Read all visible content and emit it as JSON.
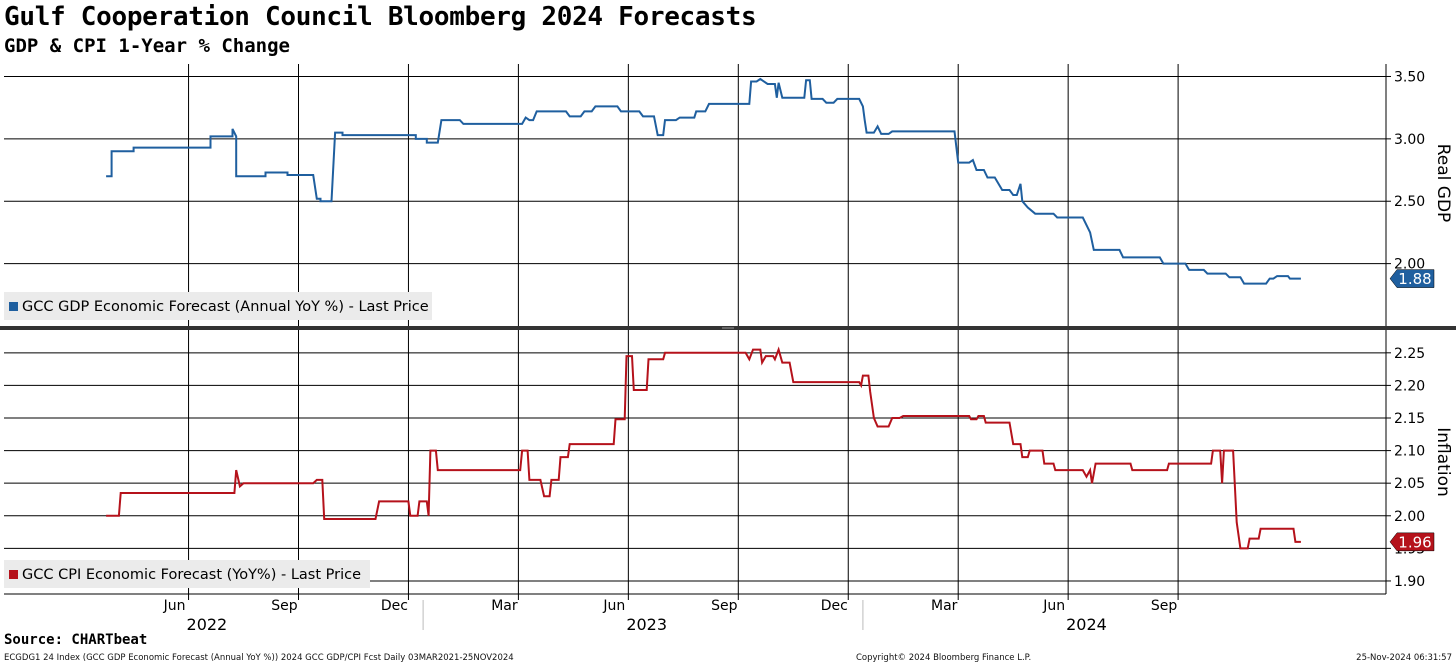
{
  "title": "Gulf Cooperation Council Bloomberg 2024 Forecasts",
  "subtitle": "GDP & CPI 1-Year % Change",
  "source": "Source: CHARTbeat",
  "footer": {
    "left": "ECGDG1 24 Index (GCC GDP Economic Forecast (Annual YoY %)) 2024 GCC GDP/CPI Fcst  Daily 03MAR2021-25NOV2024",
    "middle": "Copyright© 2024 Bloomberg Finance L.P.",
    "right": "25-Nov-2024 06:31:57"
  },
  "colors": {
    "gdp": "#1f5f9f",
    "cpi": "#b5121b"
  },
  "chart_data": [
    {
      "type": "line",
      "panel": "top",
      "ylabel": "Real GDP",
      "ylim": [
        1.5,
        3.6
      ],
      "yticks": [
        "3.50",
        "3.00",
        "2.50",
        "2.00"
      ],
      "legend": "GCC GDP Economic Forecast (Annual YoY %) - Last Price",
      "last_value": "1.88",
      "x_month_index_range": [
        2.75,
        35.35
      ],
      "series": [
        {
          "name": "GCC GDP Economic Forecast (Annual YoY %) - Last Price",
          "points": [
            [
              2.75,
              2.7
            ],
            [
              2.9,
              2.7
            ],
            [
              2.9,
              2.9
            ],
            [
              3.5,
              2.9
            ],
            [
              3.5,
              2.93
            ],
            [
              5.6,
              2.93
            ],
            [
              5.6,
              3.02
            ],
            [
              6.2,
              3.02
            ],
            [
              6.2,
              3.08
            ],
            [
              6.3,
              3.02
            ],
            [
              6.3,
              2.7
            ],
            [
              7.1,
              2.7
            ],
            [
              7.1,
              2.73
            ],
            [
              7.7,
              2.73
            ],
            [
              7.7,
              2.71
            ],
            [
              8.4,
              2.71
            ],
            [
              8.5,
              2.52
            ],
            [
              8.6,
              2.52
            ],
            [
              8.6,
              2.5
            ],
            [
              8.9,
              2.5
            ],
            [
              9.0,
              3.05
            ],
            [
              9.2,
              3.05
            ],
            [
              9.2,
              3.03
            ],
            [
              11.2,
              3.03
            ],
            [
              11.2,
              3.0
            ],
            [
              11.5,
              3.0
            ],
            [
              11.5,
              2.97
            ],
            [
              11.8,
              2.97
            ],
            [
              11.9,
              3.15
            ],
            [
              12.4,
              3.15
            ],
            [
              12.5,
              3.12
            ],
            [
              14.1,
              3.12
            ],
            [
              14.2,
              3.17
            ],
            [
              14.3,
              3.15
            ],
            [
              14.4,
              3.15
            ],
            [
              14.5,
              3.22
            ],
            [
              15.3,
              3.22
            ],
            [
              15.4,
              3.18
            ],
            [
              15.7,
              3.18
            ],
            [
              15.8,
              3.22
            ],
            [
              16.0,
              3.22
            ],
            [
              16.1,
              3.26
            ],
            [
              16.7,
              3.26
            ],
            [
              16.8,
              3.22
            ],
            [
              17.3,
              3.22
            ],
            [
              17.4,
              3.18
            ],
            [
              17.7,
              3.18
            ],
            [
              17.8,
              3.03
            ],
            [
              17.95,
              3.03
            ],
            [
              18.0,
              3.15
            ],
            [
              18.3,
              3.15
            ],
            [
              18.4,
              3.17
            ],
            [
              18.8,
              3.17
            ],
            [
              18.85,
              3.22
            ],
            [
              19.1,
              3.22
            ],
            [
              19.2,
              3.28
            ],
            [
              20.3,
              3.28
            ],
            [
              20.35,
              3.46
            ],
            [
              20.5,
              3.46
            ],
            [
              20.6,
              3.48
            ],
            [
              20.8,
              3.44
            ],
            [
              21.0,
              3.44
            ],
            [
              21.05,
              3.33
            ],
            [
              21.1,
              3.45
            ],
            [
              21.2,
              3.33
            ],
            [
              21.8,
              3.33
            ],
            [
              21.85,
              3.47
            ],
            [
              21.95,
              3.47
            ],
            [
              22.0,
              3.32
            ],
            [
              22.3,
              3.32
            ],
            [
              22.4,
              3.29
            ],
            [
              22.6,
              3.29
            ],
            [
              22.7,
              3.32
            ],
            [
              23.3,
              3.32
            ],
            [
              23.4,
              3.26
            ],
            [
              23.45,
              3.15
            ],
            [
              23.5,
              3.05
            ],
            [
              23.7,
              3.05
            ],
            [
              23.8,
              3.1
            ],
            [
              23.9,
              3.04
            ],
            [
              24.1,
              3.04
            ],
            [
              24.2,
              3.06
            ],
            [
              25.9,
              3.06
            ],
            [
              26.0,
              2.81
            ],
            [
              26.3,
              2.81
            ],
            [
              26.4,
              2.83
            ],
            [
              26.5,
              2.75
            ],
            [
              26.7,
              2.75
            ],
            [
              26.8,
              2.69
            ],
            [
              27.0,
              2.69
            ],
            [
              27.1,
              2.64
            ],
            [
              27.2,
              2.59
            ],
            [
              27.4,
              2.59
            ],
            [
              27.5,
              2.55
            ],
            [
              27.6,
              2.55
            ],
            [
              27.7,
              2.64
            ],
            [
              27.75,
              2.5
            ],
            [
              27.9,
              2.45
            ],
            [
              28.1,
              2.4
            ],
            [
              28.6,
              2.4
            ],
            [
              28.7,
              2.37
            ],
            [
              29.4,
              2.37
            ],
            [
              29.6,
              2.25
            ],
            [
              29.7,
              2.11
            ],
            [
              30.4,
              2.11
            ],
            [
              30.5,
              2.05
            ],
            [
              31.5,
              2.05
            ],
            [
              31.6,
              2.0
            ],
            [
              32.2,
              2.0
            ],
            [
              32.3,
              1.95
            ],
            [
              32.7,
              1.95
            ],
            [
              32.8,
              1.92
            ],
            [
              33.3,
              1.92
            ],
            [
              33.4,
              1.89
            ],
            [
              33.7,
              1.89
            ],
            [
              33.8,
              1.84
            ],
            [
              34.4,
              1.84
            ],
            [
              34.5,
              1.88
            ],
            [
              34.6,
              1.88
            ],
            [
              34.7,
              1.9
            ],
            [
              35.0,
              1.9
            ],
            [
              35.05,
              1.88
            ],
            [
              35.35,
              1.88
            ]
          ]
        }
      ]
    },
    {
      "type": "line",
      "panel": "bottom",
      "ylabel": "Inflation",
      "ylim": [
        1.88,
        2.285
      ],
      "yticks": [
        "2.25",
        "2.20",
        "2.15",
        "2.10",
        "2.05",
        "2.00",
        "1.95",
        "1.90"
      ],
      "legend": "GCC CPI Economic Forecast (YoY%) - Last Price",
      "last_value": "1.96",
      "x_month_index_range": [
        2.75,
        35.35
      ],
      "series": [
        {
          "name": "GCC CPI Economic Forecast (YoY%) - Last Price",
          "points": [
            [
              2.75,
              2.0
            ],
            [
              3.1,
              2.0
            ],
            [
              3.15,
              2.035
            ],
            [
              6.25,
              2.035
            ],
            [
              6.3,
              2.07
            ],
            [
              6.4,
              2.045
            ],
            [
              6.5,
              2.05
            ],
            [
              8.4,
              2.05
            ],
            [
              8.5,
              2.055
            ],
            [
              8.65,
              2.055
            ],
            [
              8.7,
              1.995
            ],
            [
              10.1,
              1.995
            ],
            [
              10.2,
              2.022
            ],
            [
              11.0,
              2.022
            ],
            [
              11.05,
              2.0
            ],
            [
              11.25,
              2.0
            ],
            [
              11.3,
              2.022
            ],
            [
              11.5,
              2.022
            ],
            [
              11.55,
              2.0
            ],
            [
              11.6,
              2.1
            ],
            [
              11.75,
              2.1
            ],
            [
              11.8,
              2.07
            ],
            [
              14.05,
              2.07
            ],
            [
              14.1,
              2.1
            ],
            [
              14.25,
              2.1
            ],
            [
              14.3,
              2.055
            ],
            [
              14.6,
              2.055
            ],
            [
              14.7,
              2.03
            ],
            [
              14.85,
              2.03
            ],
            [
              14.9,
              2.055
            ],
            [
              15.1,
              2.055
            ],
            [
              15.15,
              2.09
            ],
            [
              15.35,
              2.09
            ],
            [
              15.4,
              2.11
            ],
            [
              16.6,
              2.11
            ],
            [
              16.65,
              2.148
            ],
            [
              16.9,
              2.148
            ],
            [
              16.95,
              2.245
            ],
            [
              17.1,
              2.245
            ],
            [
              17.15,
              2.193
            ],
            [
              17.5,
              2.193
            ],
            [
              17.55,
              2.24
            ],
            [
              17.95,
              2.24
            ],
            [
              18.0,
              2.25
            ],
            [
              20.2,
              2.25
            ],
            [
              20.3,
              2.24
            ],
            [
              20.4,
              2.255
            ],
            [
              20.6,
              2.255
            ],
            [
              20.65,
              2.235
            ],
            [
              20.75,
              2.245
            ],
            [
              20.95,
              2.245
            ],
            [
              21.0,
              2.24
            ],
            [
              21.1,
              2.255
            ],
            [
              21.2,
              2.235
            ],
            [
              21.4,
              2.235
            ],
            [
              21.5,
              2.205
            ],
            [
              23.3,
              2.205
            ],
            [
              23.35,
              2.2
            ],
            [
              23.4,
              2.215
            ],
            [
              23.55,
              2.215
            ],
            [
              23.6,
              2.19
            ],
            [
              23.7,
              2.15
            ],
            [
              23.8,
              2.137
            ],
            [
              24.1,
              2.137
            ],
            [
              24.2,
              2.15
            ],
            [
              24.4,
              2.15
            ],
            [
              24.5,
              2.153
            ],
            [
              26.3,
              2.153
            ],
            [
              26.35,
              2.148
            ],
            [
              26.5,
              2.148
            ],
            [
              26.55,
              2.153
            ],
            [
              26.7,
              2.153
            ],
            [
              26.75,
              2.143
            ],
            [
              27.4,
              2.143
            ],
            [
              27.5,
              2.11
            ],
            [
              27.7,
              2.11
            ],
            [
              27.75,
              2.09
            ],
            [
              27.9,
              2.09
            ],
            [
              27.95,
              2.1
            ],
            [
              28.3,
              2.1
            ],
            [
              28.35,
              2.08
            ],
            [
              28.6,
              2.08
            ],
            [
              28.65,
              2.07
            ],
            [
              29.4,
              2.07
            ],
            [
              29.5,
              2.06
            ],
            [
              29.6,
              2.07
            ],
            [
              29.65,
              2.05
            ],
            [
              29.75,
              2.08
            ],
            [
              30.7,
              2.08
            ],
            [
              30.75,
              2.07
            ],
            [
              31.7,
              2.07
            ],
            [
              31.75,
              2.08
            ],
            [
              32.9,
              2.08
            ],
            [
              32.95,
              2.1
            ],
            [
              33.15,
              2.1
            ],
            [
              33.2,
              2.05
            ],
            [
              33.25,
              2.1
            ],
            [
              33.5,
              2.1
            ],
            [
              33.6,
              1.99
            ],
            [
              33.7,
              1.95
            ],
            [
              33.9,
              1.95
            ],
            [
              33.95,
              1.965
            ],
            [
              34.2,
              1.965
            ],
            [
              34.25,
              1.98
            ],
            [
              35.15,
              1.98
            ],
            [
              35.2,
              1.96
            ],
            [
              35.35,
              1.96
            ]
          ]
        }
      ]
    }
  ],
  "x_axis": {
    "month_ticks": [
      {
        "label": "Jun",
        "m": 5
      },
      {
        "label": "Sep",
        "m": 8
      },
      {
        "label": "Dec",
        "m": 11
      },
      {
        "label": "Mar",
        "m": 14
      },
      {
        "label": "Jun",
        "m": 17
      },
      {
        "label": "Sep",
        "m": 20
      },
      {
        "label": "Dec",
        "m": 23
      },
      {
        "label": "Mar",
        "m": 26
      },
      {
        "label": "Jun",
        "m": 29
      },
      {
        "label": "Sep",
        "m": 32
      }
    ],
    "years": [
      {
        "label": "2022",
        "m": 5.5
      },
      {
        "label": "2023",
        "m": 17.5
      },
      {
        "label": "2024",
        "m": 29.5
      }
    ]
  }
}
